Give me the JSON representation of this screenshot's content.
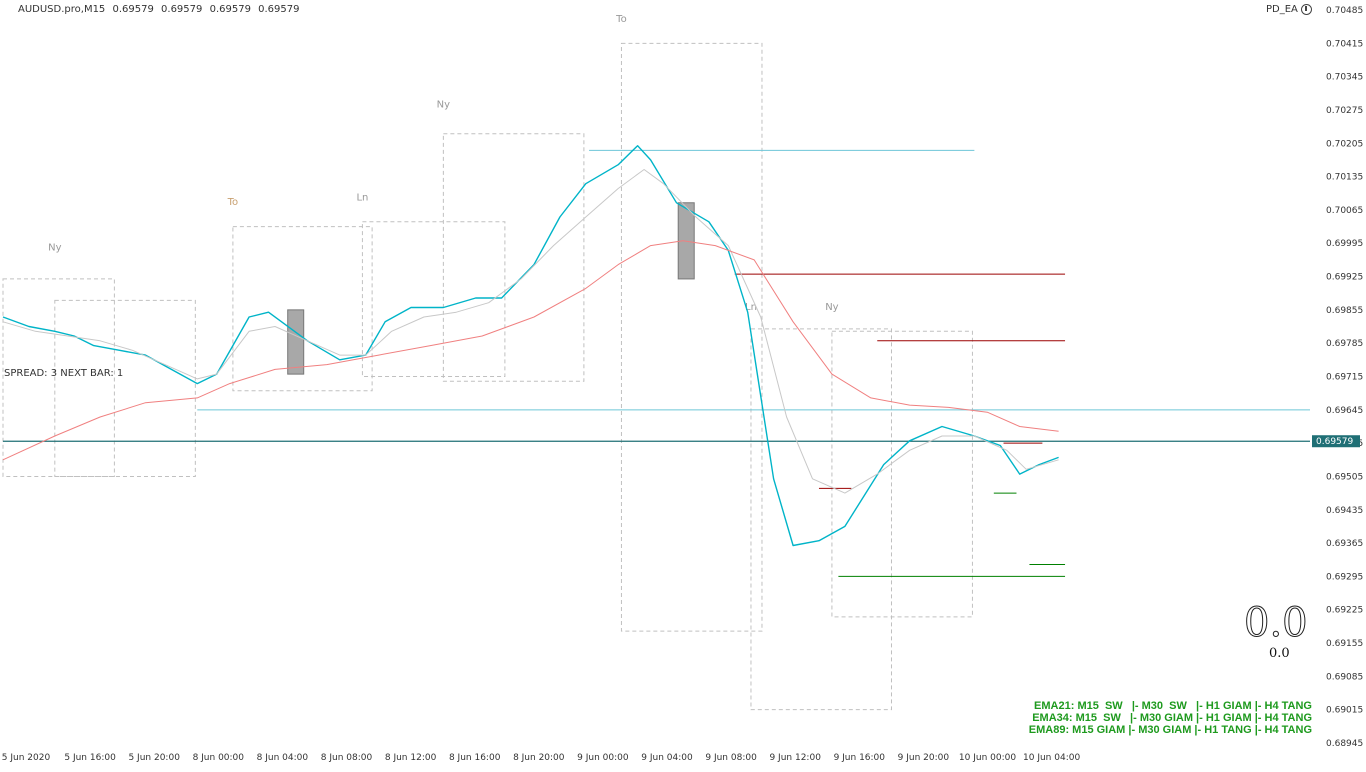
{
  "header": {
    "symbol": "AUDUSD.pro,M15",
    "ohlc": [
      "0.69579",
      "0.69579",
      "0.69579",
      "0.69579"
    ]
  },
  "top_right": {
    "label": "PD_EA",
    "icon": "clock-icon"
  },
  "side_label": "SPREAD: 3   NEXT BAR: 1",
  "big_value": "0.0",
  "small_value": "0.0",
  "ema_lines": [
    "EMA21: M15  SW   |- M30  SW   |- H1 GIAM |- H4 TANG",
    "EMA34: M15  SW   |- M30 GIAM |- H1 GIAM |- H4 TANG",
    "EMA89: M15 GIAM |- M30 GIAM |- H1 TANG |- H4 TANG"
  ],
  "colors": {
    "fast": "#00b4c8",
    "mid": "#c8c8c8",
    "slow": "#f08080",
    "hline": "#6ec6d8",
    "current": "#1f6f75",
    "red": "#9b0000",
    "green": "#008000",
    "box": "#c0c0c0",
    "ema_text": "#1e9a1e"
  },
  "chart_data": {
    "type": "line",
    "ylim": [
      0.68945,
      0.70485
    ],
    "y_ticks": [
      "0.70485",
      "0.70415",
      "0.70345",
      "0.70275",
      "0.70205",
      "0.70135",
      "0.70065",
      "0.69995",
      "0.69925",
      "0.69855",
      "0.69785",
      "0.69715",
      "0.69645",
      "0.69575",
      "0.69505",
      "0.69435",
      "0.69365",
      "0.69295",
      "0.69225",
      "0.69155",
      "0.69085",
      "0.69015",
      "0.68945"
    ],
    "current_price_label": "0.69579",
    "x_ticks": [
      "5 Jun 2020",
      "5 Jun 16:00",
      "5 Jun 20:00",
      "8 Jun 00:00",
      "8 Jun 04:00",
      "8 Jun 08:00",
      "8 Jun 12:00",
      "8 Jun 16:00",
      "8 Jun 20:00",
      "9 Jun 00:00",
      "9 Jun 04:00",
      "9 Jun 08:00",
      "9 Jun 12:00",
      "9 Jun 16:00",
      "9 Jun 20:00",
      "10 Jun 00:00",
      "10 Jun 04:00"
    ],
    "x_range": [
      0,
      16.6
    ],
    "series": [
      {
        "key": "fast",
        "points": [
          [
            0,
            0.6984
          ],
          [
            0.4,
            0.6982
          ],
          [
            0.8,
            0.6981
          ],
          [
            1.1,
            0.698
          ],
          [
            1.4,
            0.6978
          ],
          [
            1.8,
            0.6977
          ],
          [
            2.2,
            0.6976
          ],
          [
            2.6,
            0.6973
          ],
          [
            3.0,
            0.697
          ],
          [
            3.3,
            0.6972
          ],
          [
            3.8,
            0.6984
          ],
          [
            4.1,
            0.6985
          ],
          [
            4.7,
            0.6979
          ],
          [
            5.2,
            0.6975
          ],
          [
            5.6,
            0.6976
          ],
          [
            5.9,
            0.6983
          ],
          [
            6.3,
            0.6986
          ],
          [
            6.8,
            0.6986
          ],
          [
            7.3,
            0.6988
          ],
          [
            7.7,
            0.6988
          ],
          [
            8.2,
            0.6995
          ],
          [
            8.6,
            0.7005
          ],
          [
            9.0,
            0.7012
          ],
          [
            9.5,
            0.7016
          ],
          [
            9.8,
            0.702
          ],
          [
            10.0,
            0.7017
          ],
          [
            10.4,
            0.7008
          ],
          [
            10.9,
            0.7004
          ],
          [
            11.2,
            0.6998
          ],
          [
            11.5,
            0.6985
          ],
          [
            11.9,
            0.695
          ],
          [
            12.2,
            0.6936
          ],
          [
            12.6,
            0.6937
          ],
          [
            13.0,
            0.694
          ],
          [
            13.6,
            0.6953
          ],
          [
            14.0,
            0.6958
          ],
          [
            14.5,
            0.6961
          ],
          [
            15.0,
            0.6959
          ],
          [
            15.4,
            0.6957
          ],
          [
            15.7,
            0.6951
          ],
          [
            16.0,
            0.6953
          ],
          [
            16.3,
            0.69545
          ]
        ]
      },
      {
        "key": "mid",
        "points": [
          [
            0,
            0.6983
          ],
          [
            0.5,
            0.6981
          ],
          [
            1.0,
            0.698
          ],
          [
            1.5,
            0.6979
          ],
          [
            2.0,
            0.6977
          ],
          [
            2.5,
            0.6974
          ],
          [
            3.0,
            0.6971
          ],
          [
            3.3,
            0.6972
          ],
          [
            3.8,
            0.6981
          ],
          [
            4.2,
            0.6982
          ],
          [
            4.7,
            0.6979
          ],
          [
            5.2,
            0.6976
          ],
          [
            5.6,
            0.6976
          ],
          [
            6.0,
            0.6981
          ],
          [
            6.5,
            0.6984
          ],
          [
            7.0,
            0.6985
          ],
          [
            7.5,
            0.6987
          ],
          [
            8.0,
            0.6992
          ],
          [
            8.5,
            0.6999
          ],
          [
            9.0,
            0.7005
          ],
          [
            9.5,
            0.7011
          ],
          [
            9.9,
            0.7015
          ],
          [
            10.2,
            0.7012
          ],
          [
            10.7,
            0.7005
          ],
          [
            11.2,
            0.6999
          ],
          [
            11.7,
            0.6984
          ],
          [
            12.1,
            0.6963
          ],
          [
            12.5,
            0.695
          ],
          [
            13.0,
            0.6947
          ],
          [
            13.5,
            0.6951
          ],
          [
            14.0,
            0.6956
          ],
          [
            14.5,
            0.6959
          ],
          [
            15.0,
            0.6959
          ],
          [
            15.5,
            0.6956
          ],
          [
            15.8,
            0.6952
          ],
          [
            16.3,
            0.6954
          ]
        ]
      },
      {
        "key": "slow",
        "points": [
          [
            0,
            0.6954
          ],
          [
            0.8,
            0.6959
          ],
          [
            1.5,
            0.6963
          ],
          [
            2.2,
            0.6966
          ],
          [
            3.0,
            0.6967
          ],
          [
            3.5,
            0.697
          ],
          [
            4.2,
            0.6973
          ],
          [
            5.0,
            0.6974
          ],
          [
            5.8,
            0.6976
          ],
          [
            6.6,
            0.6978
          ],
          [
            7.4,
            0.698
          ],
          [
            8.2,
            0.6984
          ],
          [
            9.0,
            0.699
          ],
          [
            9.5,
            0.6995
          ],
          [
            10.0,
            0.6999
          ],
          [
            10.5,
            0.7
          ],
          [
            11.0,
            0.6999
          ],
          [
            11.6,
            0.6996
          ],
          [
            12.2,
            0.6983
          ],
          [
            12.8,
            0.6972
          ],
          [
            13.4,
            0.6967
          ],
          [
            14.0,
            0.69655
          ],
          [
            14.6,
            0.6965
          ],
          [
            15.2,
            0.6964
          ],
          [
            15.7,
            0.6961
          ],
          [
            16.3,
            0.696
          ]
        ]
      }
    ],
    "horizontal_lines": [
      {
        "y": 0.7019,
        "x0": 9.05,
        "x1": 15.0,
        "key": "hline"
      },
      {
        "y": 0.69645,
        "x0": 3.0,
        "x1": 20.5,
        "key": "hline"
      },
      {
        "y": 0.69579,
        "x0": 0,
        "x1": 20.2,
        "key": "current"
      },
      {
        "y": 0.6993,
        "x0": 11.3,
        "x1": 16.4,
        "key": "red"
      },
      {
        "y": 0.6979,
        "x0": 13.5,
        "x1": 16.4,
        "key": "red"
      },
      {
        "y": 0.6948,
        "x0": 12.6,
        "x1": 13.1,
        "key": "red"
      },
      {
        "y": 0.69575,
        "x0": 15.45,
        "x1": 16.05,
        "key": "red"
      },
      {
        "y": 0.6947,
        "x0": 15.3,
        "x1": 15.65,
        "key": "green"
      },
      {
        "y": 0.6932,
        "x0": 15.85,
        "x1": 16.4,
        "key": "green"
      },
      {
        "y": 0.69295,
        "x0": 12.9,
        "x1": 16.4,
        "key": "green"
      }
    ],
    "session_boxes": [
      {
        "label": "Ny",
        "x0": 0.0,
        "x1": 1.72,
        "y_top": 0.6992,
        "y_bot": 0.69505,
        "ly": 0.6998,
        "lx": 0.8,
        "lc": "#999999"
      },
      {
        "label": "",
        "x0": 0.8,
        "x1": 2.97,
        "y_top": 0.69875,
        "y_bot": 0.69505,
        "ly": 0,
        "lx": 0,
        "lc": "#999999"
      },
      {
        "label": "To",
        "x0": 3.55,
        "x1": 5.7,
        "y_top": 0.7003,
        "y_bot": 0.69685,
        "ly": 0.70075,
        "lx": 3.55,
        "lc": "#c8a070"
      },
      {
        "label": "Ln",
        "x0": 5.55,
        "x1": 7.75,
        "y_top": 0.7004,
        "y_bot": 0.69715,
        "ly": 0.70085,
        "lx": 5.55,
        "lc": "#999999"
      },
      {
        "label": "Ny",
        "x0": 6.8,
        "x1": 8.97,
        "y_top": 0.70225,
        "y_bot": 0.69705,
        "ly": 0.7028,
        "lx": 6.8,
        "lc": "#999999"
      },
      {
        "label": "To",
        "x0": 9.55,
        "x1": 11.72,
        "y_top": 0.70415,
        "y_bot": 0.6918,
        "ly": 0.7046,
        "lx": 9.55,
        "lc": "#999999"
      },
      {
        "label": "Ln",
        "x0": 11.55,
        "x1": 13.72,
        "y_top": 0.69815,
        "y_bot": 0.69015,
        "ly": 0.69855,
        "lx": 11.55,
        "lc": "#999999"
      },
      {
        "label": "Ny",
        "x0": 12.8,
        "x1": 14.97,
        "y_top": 0.6981,
        "y_bot": 0.6921,
        "ly": 0.69855,
        "lx": 12.8,
        "lc": "#999999"
      }
    ],
    "candles": [
      {
        "x": 4.52,
        "y_top": 0.69855,
        "y_bot": 0.6972
      },
      {
        "x": 10.55,
        "y_top": 0.7008,
        "y_bot": 0.6992
      }
    ]
  }
}
